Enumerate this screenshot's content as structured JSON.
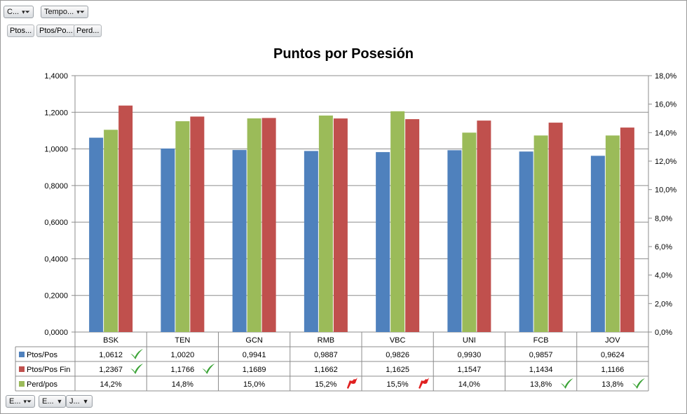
{
  "pivot": {
    "top_filters": [
      {
        "label": "C...",
        "icon": "filter-dropdown-icon"
      },
      {
        "label": "Tempo...",
        "icon": "filter-dropdown-icon"
      }
    ],
    "value_fields": [
      "Ptos...",
      "Ptos/Po...",
      "Perd..."
    ],
    "bottom_fields": [
      {
        "label": "E...",
        "icon": "filter-dropdown-icon"
      },
      {
        "label": "E...",
        "icon": "dropdown-icon"
      },
      {
        "label": "J...",
        "icon": "dropdown-icon"
      }
    ]
  },
  "colors": {
    "ptos_pos": "#4f81bd",
    "ptos_pos_fin": "#c0504d",
    "perd_pos": "#9bbb59",
    "check_green": "#3aa335",
    "flag_red": "#e02020"
  },
  "chart_data": {
    "type": "bar",
    "title": "Puntos por Posesión",
    "categories": [
      "BSK",
      "TEN",
      "GCN",
      "RMB",
      "VBC",
      "UNI",
      "FCB",
      "JOV"
    ],
    "y_left": {
      "min": 0,
      "max": 1.4,
      "ticks": [
        "0,0000",
        "0,2000",
        "0,4000",
        "0,6000",
        "0,8000",
        "1,0000",
        "1,2000",
        "1,4000"
      ]
    },
    "y_right": {
      "min": 0,
      "max": 18,
      "ticks": [
        "0,0%",
        "2,0%",
        "4,0%",
        "6,0%",
        "8,0%",
        "10,0%",
        "12,0%",
        "14,0%",
        "16,0%",
        "18,0%"
      ]
    },
    "grid": true,
    "series": [
      {
        "name": "Ptos/Pos",
        "axis": "left",
        "values": [
          1.0612,
          1.002,
          0.9941,
          0.9887,
          0.9826,
          0.993,
          0.9857,
          0.9624
        ],
        "labels": [
          "1,0612",
          "1,0020",
          "0,9941",
          "0,9887",
          "0,9826",
          "0,9930",
          "0,9857",
          "0,9624"
        ],
        "icons": [
          "check",
          "",
          "",
          "",
          "",
          "",
          "",
          ""
        ]
      },
      {
        "name": "Perd/pos",
        "axis": "right",
        "values": [
          14.2,
          14.8,
          15.0,
          15.2,
          15.5,
          14.0,
          13.8,
          13.8
        ],
        "labels": [
          "14,2%",
          "14,8%",
          "15,0%",
          "15,2%",
          "15,5%",
          "14,0%",
          "13,8%",
          "13,8%"
        ],
        "icons": [
          "",
          "",
          "",
          "flag",
          "flag",
          "",
          "check",
          "check"
        ]
      },
      {
        "name": "Ptos/Pos Fin",
        "axis": "left",
        "values": [
          1.2367,
          1.1766,
          1.1689,
          1.1662,
          1.1625,
          1.1547,
          1.1434,
          1.1166
        ],
        "labels": [
          "1,2367",
          "1,1766",
          "1,1689",
          "1,1662",
          "1,1625",
          "1,1547",
          "1,1434",
          "1,1166"
        ],
        "icons": [
          "check",
          "check",
          "",
          "",
          "",
          "",
          "",
          ""
        ]
      }
    ],
    "table_row_order": [
      "Ptos/Pos",
      "Ptos/Pos Fin",
      "Perd/pos"
    ]
  }
}
